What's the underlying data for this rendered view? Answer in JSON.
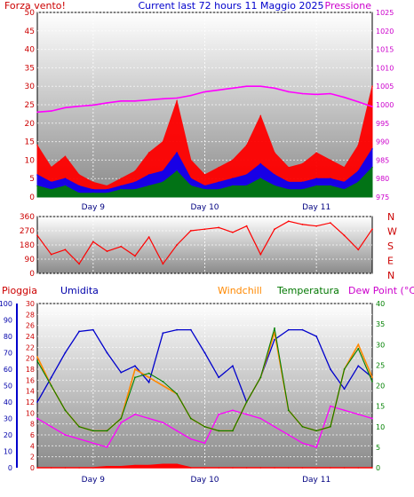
{
  "title": "Current last 72 hours 11 Maggio 2025",
  "day_labels": [
    "Day 9",
    "Day 10",
    "Day 11"
  ],
  "colors": {
    "wind": "#ff0000",
    "gust": "#0000ff",
    "avg": "#008000",
    "pressure": "#ff00ff",
    "direction": "#ff0000",
    "humidity": "#0000cc",
    "rain": "#ff0000",
    "windchill": "#ff8800",
    "temperature": "#008000",
    "dewpoint": "#ff00ff"
  },
  "chart_data": [
    {
      "type": "area",
      "id": "wind-pressure",
      "left_label": "Forza vento!",
      "right_label": "Pressione",
      "ylim": [
        0,
        50
      ],
      "y2lim": [
        975,
        1025
      ],
      "yticks": [
        0,
        5,
        10,
        15,
        20,
        25,
        30,
        35,
        40,
        45,
        50
      ],
      "y2ticks": [
        975,
        980,
        985,
        990,
        995,
        1000,
        1005,
        1010,
        1015,
        1020,
        1025
      ],
      "x": [
        0,
        3,
        6,
        9,
        12,
        15,
        18,
        21,
        24,
        27,
        30,
        33,
        36,
        39,
        42,
        45,
        48,
        51,
        54,
        57,
        60,
        63,
        66,
        69,
        72
      ],
      "series": [
        {
          "role": "wind",
          "values": [
            14,
            8,
            11,
            6,
            4,
            3,
            5,
            7,
            12,
            15,
            26,
            10,
            6,
            8,
            10,
            14,
            22,
            12,
            8,
            9,
            12,
            10,
            8,
            14,
            30
          ]
        },
        {
          "role": "gust",
          "values": [
            6,
            4,
            5,
            3,
            2,
            2,
            3,
            4,
            6,
            7,
            12,
            5,
            3,
            4,
            5,
            6,
            9,
            6,
            4,
            4,
            5,
            5,
            4,
            7,
            13
          ]
        },
        {
          "role": "avg",
          "values": [
            3,
            2,
            3,
            1,
            1,
            1,
            2,
            2,
            3,
            4,
            7,
            3,
            2,
            2,
            3,
            3,
            5,
            3,
            2,
            2,
            3,
            3,
            2,
            4,
            8
          ]
        },
        {
          "role": "pressure",
          "values": [
            998.0,
            998.3,
            999.2,
            999.6,
            999.9,
            1000.5,
            1001.0,
            1001.0,
            1001.3,
            1001.6,
            1001.8,
            1002.5,
            1003.5,
            1004.0,
            1004.5,
            1005.0,
            1005.0,
            1004.5,
            1003.5,
            1003.0,
            1002.8,
            1003.0,
            1002.0,
            1000.8,
            999.5
          ]
        }
      ]
    },
    {
      "type": "line",
      "id": "wind-direction",
      "ylim": [
        0,
        360
      ],
      "yticks": [
        0,
        90,
        180,
        270,
        360
      ],
      "compass": [
        "N",
        "W",
        "S",
        "E",
        "N"
      ],
      "x": [
        0,
        3,
        6,
        9,
        12,
        15,
        18,
        21,
        24,
        27,
        30,
        33,
        36,
        39,
        42,
        45,
        48,
        51,
        54,
        57,
        60,
        63,
        66,
        69,
        72
      ],
      "series": [
        {
          "role": "direction",
          "values": [
            240,
            120,
            150,
            60,
            200,
            140,
            170,
            110,
            230,
            60,
            180,
            270,
            280,
            290,
            260,
            300,
            120,
            280,
            330,
            310,
            300,
            320,
            240,
            150,
            280
          ]
        }
      ]
    },
    {
      "type": "line",
      "id": "temp-humidity",
      "labels": [
        "Pioggia",
        "Umidita",
        "Windchill",
        "Temperatura",
        "Dew Point (°C)"
      ],
      "rain_lim": [
        0,
        30
      ],
      "rain_ticks": [
        0,
        2,
        4,
        6,
        8,
        10,
        12,
        14,
        16,
        18,
        20,
        22,
        24,
        26,
        28,
        30
      ],
      "hum_lim": [
        0,
        100
      ],
      "hum_ticks": [
        0,
        10,
        20,
        30,
        40,
        50,
        60,
        70,
        80,
        90,
        100
      ],
      "temp_lim": [
        0,
        40
      ],
      "temp_ticks": [
        0,
        5,
        10,
        15,
        20,
        25,
        30,
        35,
        40
      ],
      "x": [
        0,
        3,
        6,
        9,
        12,
        15,
        18,
        21,
        24,
        27,
        30,
        33,
        36,
        39,
        42,
        45,
        48,
        51,
        54,
        57,
        60,
        63,
        66,
        69,
        72
      ],
      "series": [
        {
          "role": "humidity",
          "values": [
            40,
            55,
            70,
            83,
            84,
            70,
            58,
            62,
            52,
            82,
            84,
            84,
            70,
            55,
            62,
            40,
            55,
            78,
            84,
            84,
            80,
            60,
            48,
            62,
            55
          ]
        },
        {
          "role": "windchill",
          "values": [
            27,
            20,
            14,
            10,
            9,
            9,
            12,
            24,
            22,
            20,
            18,
            12,
            10,
            9,
            9,
            16,
            22,
            33,
            14,
            10,
            9,
            10,
            24,
            30,
            22
          ]
        },
        {
          "role": "temperature",
          "values": [
            26,
            20,
            14,
            10,
            9,
            9,
            12,
            22,
            23,
            21,
            18,
            12,
            10,
            9,
            9,
            16,
            22,
            34,
            14,
            10,
            9,
            10,
            24,
            29,
            21
          ]
        },
        {
          "role": "dewpoint",
          "values": [
            12,
            10,
            8,
            7,
            6,
            5,
            11,
            13,
            12,
            11,
            9,
            7,
            6,
            13,
            14,
            13,
            12,
            10,
            8,
            6,
            5,
            15,
            14,
            13,
            12
          ]
        },
        {
          "role": "rain",
          "values": [
            0,
            0,
            0,
            0,
            0,
            0.2,
            0.2,
            0.4,
            0.4,
            0.6,
            0.6,
            0,
            0,
            0,
            0,
            0,
            0,
            0,
            0,
            0,
            0,
            0,
            0,
            0,
            0
          ]
        }
      ]
    }
  ]
}
